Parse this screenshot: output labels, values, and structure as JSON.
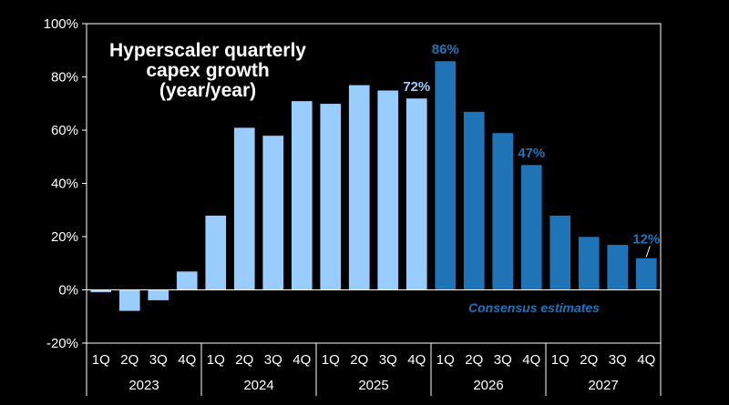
{
  "chart_data": {
    "type": "bar",
    "title_lines": [
      "Hyperscaler quarterly",
      "capex growth",
      "(year/year)"
    ],
    "quarters": [
      "1Q",
      "2Q",
      "3Q",
      "4Q",
      "1Q",
      "2Q",
      "3Q",
      "4Q",
      "1Q",
      "2Q",
      "3Q",
      "4Q",
      "1Q",
      "2Q",
      "3Q",
      "4Q",
      "1Q",
      "2Q",
      "3Q",
      "4Q"
    ],
    "years": [
      "2023",
      "2024",
      "2025",
      "2026",
      "2027"
    ],
    "values": [
      -1,
      -8,
      -4,
      7,
      28,
      61,
      58,
      71,
      70,
      77,
      75,
      72,
      86,
      67,
      59,
      47,
      28,
      20,
      17,
      12
    ],
    "estimate_start_index": 12,
    "ylim": [
      -20,
      100
    ],
    "yticks": [
      -20,
      0,
      20,
      40,
      60,
      80,
      100
    ],
    "ytick_labels": [
      "-20%",
      "0%",
      "20%",
      "40%",
      "60%",
      "80%",
      "100%"
    ],
    "data_labels": [
      {
        "index": 11,
        "text": "72%"
      },
      {
        "index": 12,
        "text": "86%"
      },
      {
        "index": 15,
        "text": "47%"
      },
      {
        "index": 19,
        "text": "12%"
      }
    ],
    "annotation": "Consensus estimates",
    "colors": {
      "actual": "#99ccff",
      "estimate": "#1f74b8",
      "actual_label": "#99ccff",
      "estimate_label": "#1f74b8",
      "text": "#ffffff",
      "axis": "#ffffff",
      "background": "#000000"
    }
  }
}
